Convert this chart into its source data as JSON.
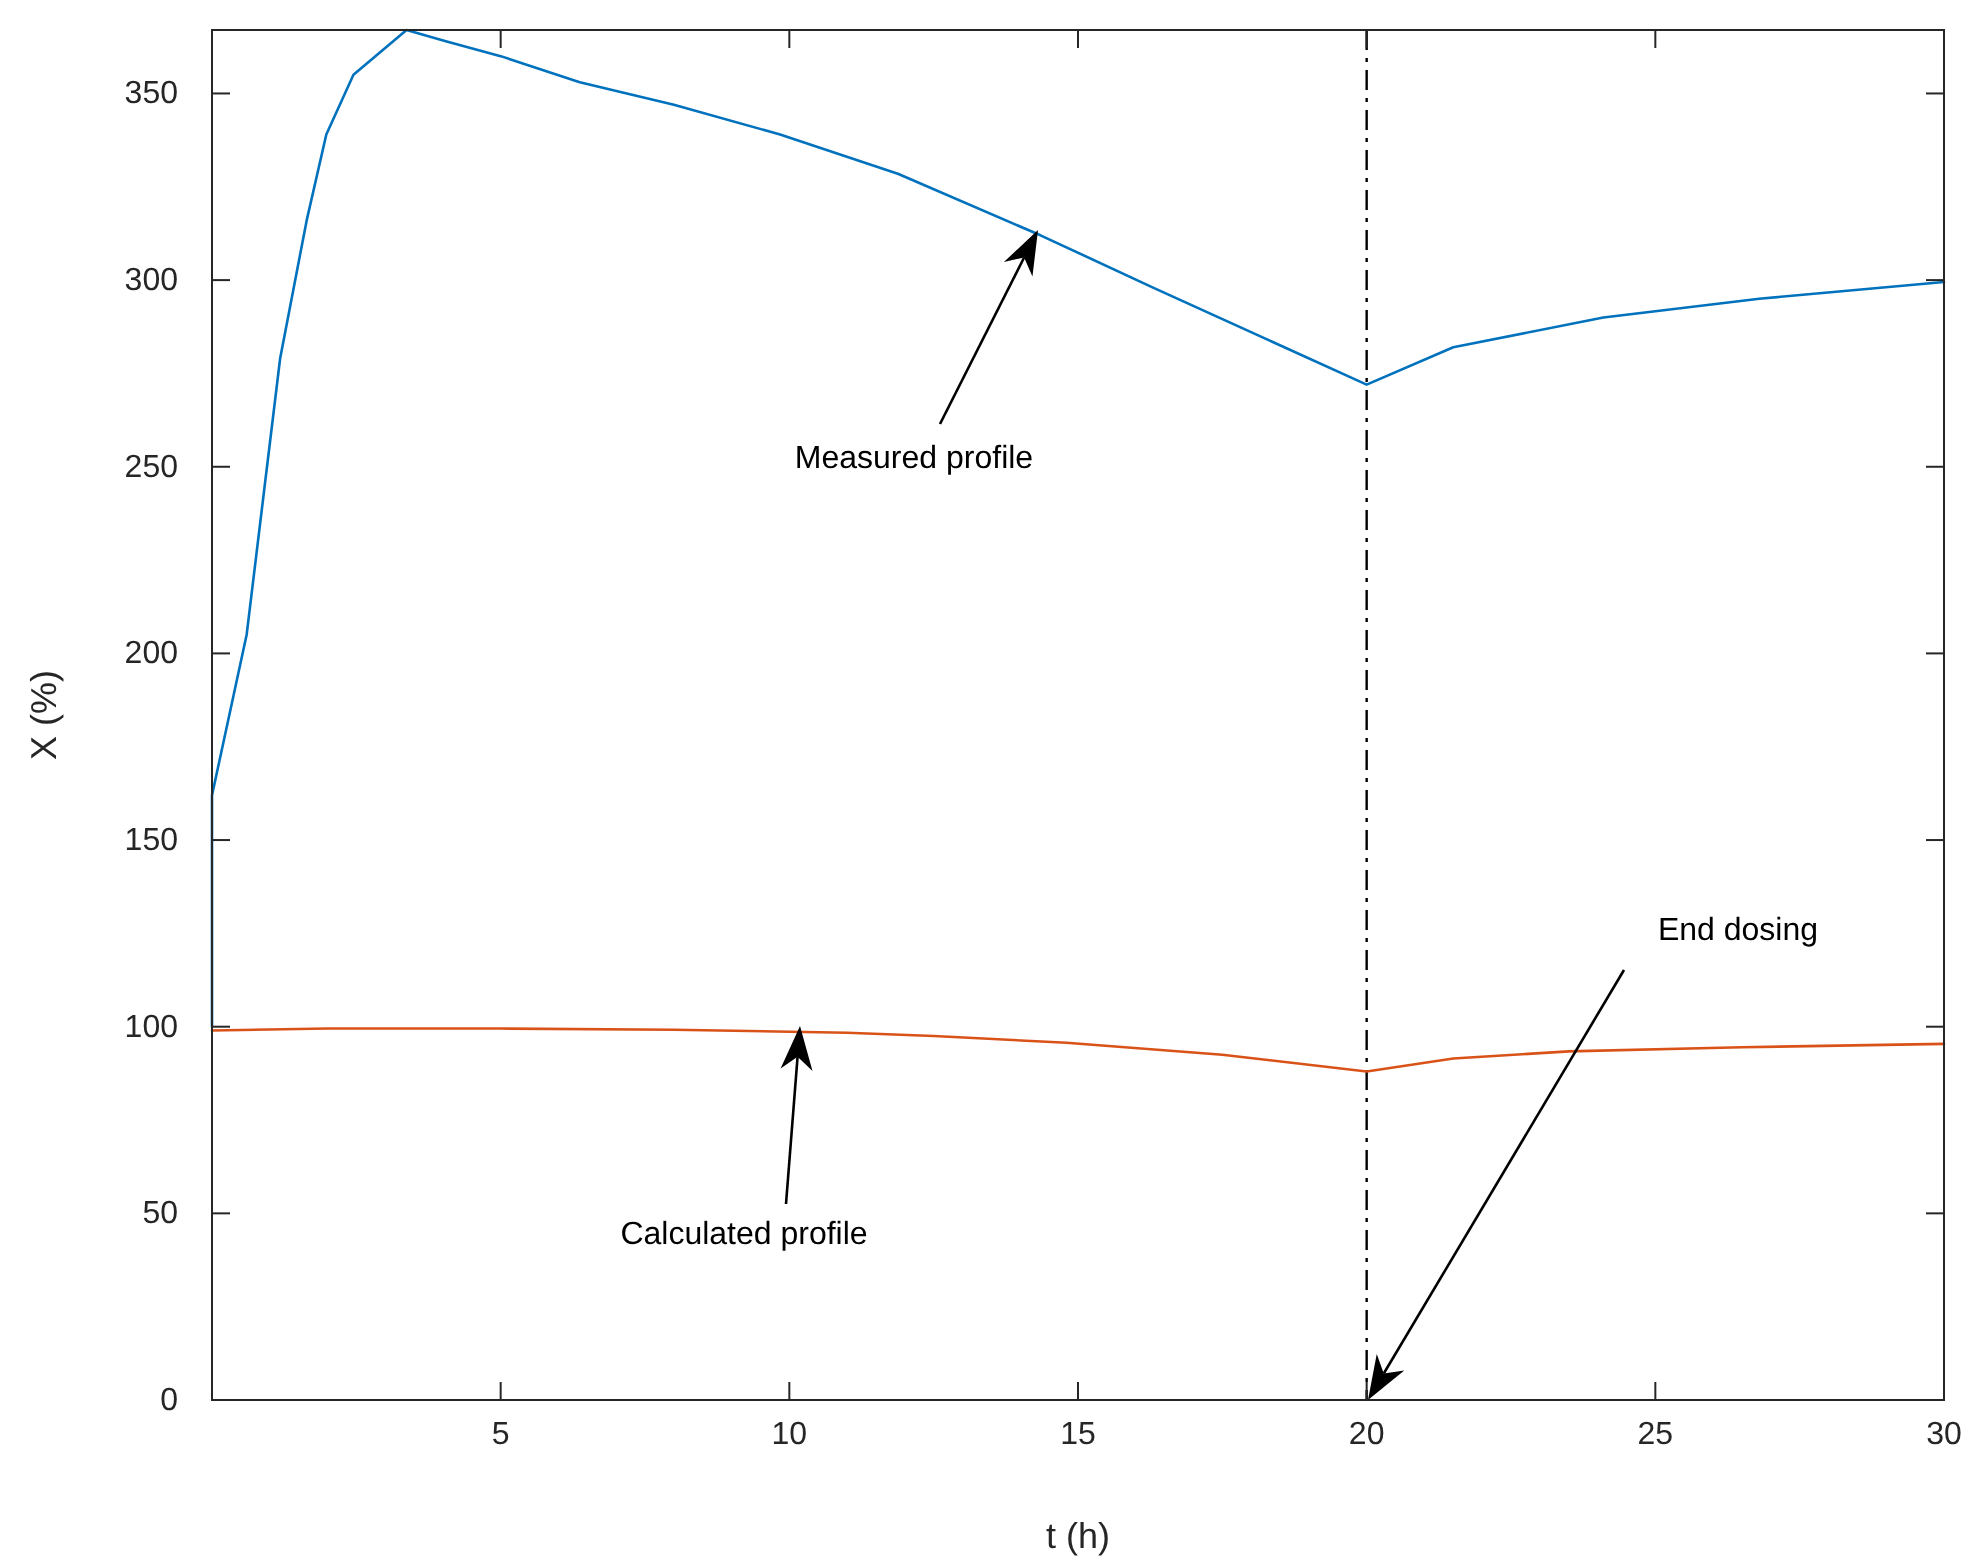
{
  "chart_data": {
    "type": "line",
    "xlabel": "t (h)",
    "ylabel": "X (%)",
    "xlim": [
      0,
      30
    ],
    "ylim": [
      0,
      367
    ],
    "xticks": [
      5,
      10,
      15,
      20,
      25,
      30
    ],
    "yticks": [
      0,
      50,
      100,
      150,
      200,
      250,
      300,
      350
    ],
    "grid": false,
    "line_style": "solid",
    "marker": "none",
    "series": [
      {
        "color": "#0072bd",
        "x": [
          0,
          0,
          0.6,
          1.18,
          1.64,
          1.98,
          2.45,
          3.37,
          4.05,
          5,
          6.37,
          8,
          9.84,
          11.88,
          14.35,
          16.3,
          18.15,
          20,
          21.5,
          24.1,
          26.8,
          30
        ],
        "values": [
          100,
          162,
          205,
          279,
          316,
          339,
          355,
          367,
          364,
          360,
          353,
          347,
          339,
          328.5,
          312,
          298,
          285,
          272,
          282,
          290,
          295,
          299.5
        ]
      },
      {
        "color": "#d95319",
        "x": [
          0,
          2,
          5,
          8,
          11,
          12.5,
          14.8,
          17.5,
          20,
          21.5,
          23.5,
          26.5,
          30
        ],
        "values": [
          99,
          99.5,
          99.5,
          99.2,
          98.4,
          97.5,
          95.7,
          92.5,
          88,
          91.5,
          93.4,
          94.5,
          95.4
        ]
      }
    ],
    "ref_lines": [
      {
        "axis": "x",
        "value": 20,
        "color": "#000000",
        "line_style": "dashdot"
      }
    ],
    "annotations": [
      "Measured profile",
      "Calculated profile",
      "End dosing"
    ]
  }
}
